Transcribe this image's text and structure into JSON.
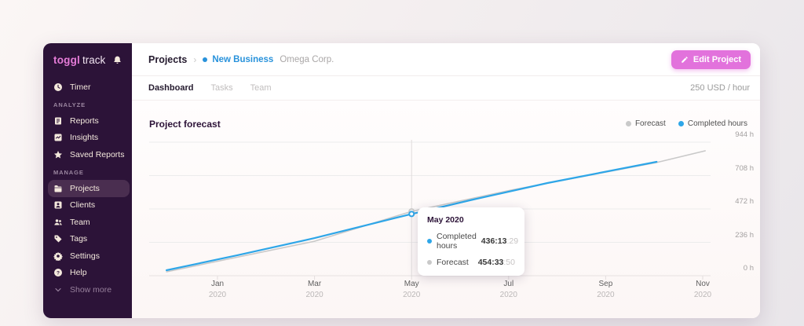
{
  "colors": {
    "sidebar_bg": "#2c1338",
    "sidebar_selected_bg": "#4a2e50",
    "sidebar_text": "#f4e9dd",
    "logo_pink": "#e57cd8",
    "button_pink": "#e272dc",
    "link_blue": "#2892db",
    "completed_blue": "#2ea6e8",
    "forecast_gray": "#c9c9c9"
  },
  "icons": {
    "timer": "clock-icon",
    "reports": "document-icon",
    "insights": "trend-chart-icon",
    "saved_reports": "star-icon",
    "projects": "folder-icon",
    "clients": "client-card-icon",
    "team": "people-icon",
    "tags": "tag-icon",
    "settings": "gear-icon",
    "help": "question-circle-icon",
    "show_more": "chevron-down-icon",
    "notifications": "bell-icon",
    "edit_project": "pencil-icon",
    "breadcrumb_separator": "›"
  },
  "sidebar": {
    "logo_part1": "toggl",
    "logo_part2": "track",
    "nav": {
      "timer": "Timer",
      "analyze_section": "ANALYZE",
      "reports": "Reports",
      "insights": "Insights",
      "saved_reports": "Saved Reports",
      "manage_section": "MANAGE",
      "projects": "Projects",
      "clients": "Clients",
      "team": "Team",
      "tags": "Tags",
      "settings": "Settings",
      "help": "Help",
      "show_more": "Show more"
    }
  },
  "header": {
    "breadcrumb_root": "Projects",
    "project_name": "New Business",
    "client_name": "Omega Corp.",
    "edit_button_label": "Edit Project"
  },
  "tabs": {
    "dashboard": "Dashboard",
    "tasks": "Tasks",
    "team": "Team",
    "rate": "250 USD / hour"
  },
  "chart_data": {
    "type": "line",
    "title": "Project forecast",
    "legend": [
      {
        "name": "Forecast",
        "color": "#c9c9c9"
      },
      {
        "name": "Completed hours",
        "color": "#2ea6e8"
      }
    ],
    "y_axis": {
      "unit": "h",
      "max": 944,
      "ticks": [
        944,
        708,
        472,
        236,
        0
      ],
      "tick_labels": [
        "944 h",
        "708 h",
        "472 h",
        "236 h",
        "0 h"
      ],
      "position": "right",
      "grid": true
    },
    "x_axis": {
      "months_between_ticks": 2,
      "ticks": [
        {
          "month": "Jan",
          "year": "2020"
        },
        {
          "month": "Mar",
          "year": "2020"
        },
        {
          "month": "May",
          "year": "2020"
        },
        {
          "month": "Jul",
          "year": "2020"
        },
        {
          "month": "Sep",
          "year": "2020"
        },
        {
          "month": "Nov",
          "year": "2020"
        }
      ]
    },
    "series": [
      {
        "name": "Forecast",
        "color": "#c9c9c9",
        "points": [
          {
            "m": -1.05,
            "hours": 28
          },
          {
            "m": 2,
            "hours": 244
          },
          {
            "m": 4,
            "hours": 454.56
          },
          {
            "m": 6.05,
            "hours": 605
          },
          {
            "m": 9.05,
            "hours": 800
          },
          {
            "m": 10.05,
            "hours": 883
          }
        ]
      },
      {
        "name": "Completed hours",
        "color": "#2ea6e8",
        "points": [
          {
            "m": -1.05,
            "hours": 39
          },
          {
            "m": 0.4,
            "hours": 144
          },
          {
            "m": 2,
            "hours": 266
          },
          {
            "m": 4,
            "hours": 436.22
          },
          {
            "m": 5.2,
            "hours": 533
          },
          {
            "m": 6.8,
            "hours": 655
          },
          {
            "m": 9.05,
            "hours": 805
          }
        ]
      }
    ],
    "hover": {
      "month_index": 4,
      "title": "May 2020",
      "rows": [
        {
          "label": "Completed hours",
          "value": "436:13",
          "seconds": ":29",
          "color": "#2ea6e8"
        },
        {
          "label": "Forecast",
          "value": "454:33",
          "seconds": ":50",
          "color": "#c9c9c9"
        }
      ]
    }
  }
}
